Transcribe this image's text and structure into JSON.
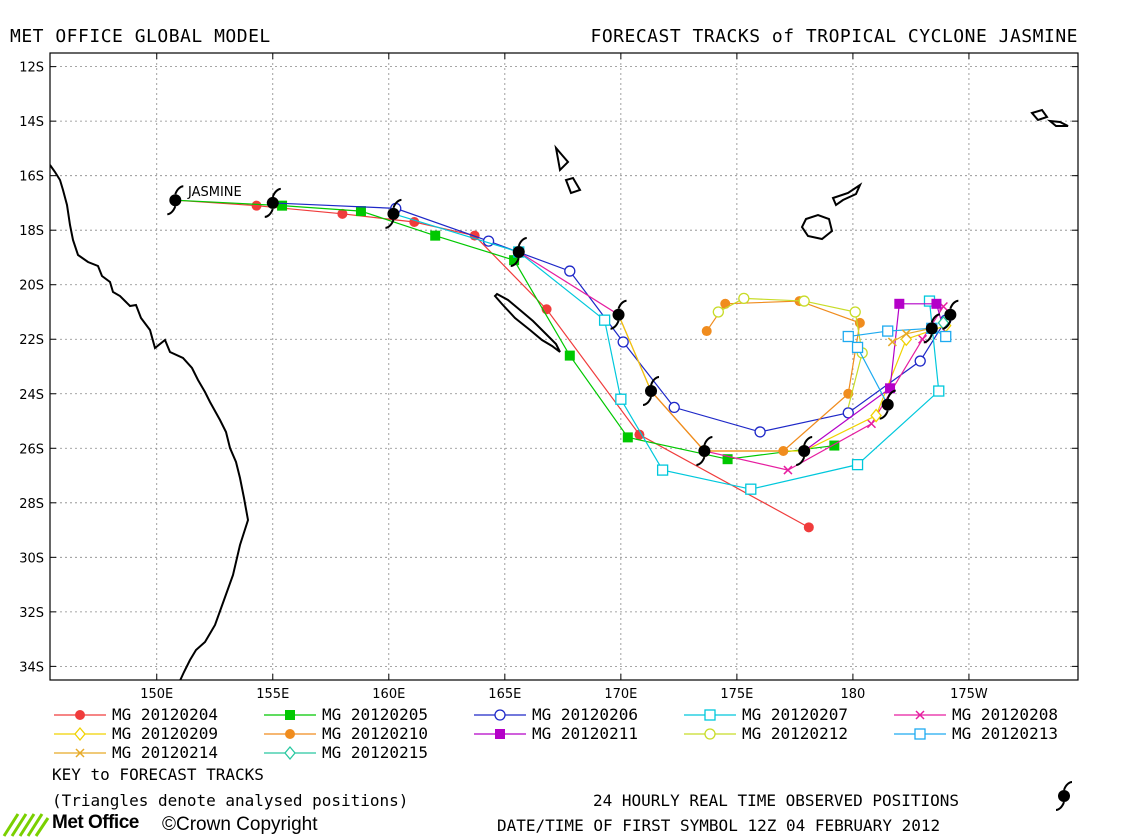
{
  "header": {
    "left": "MET OFFICE GLOBAL MODEL",
    "right": "FORECAST TRACKS of TROPICAL CYCLONE JASMINE"
  },
  "storm_label": "JASMINE",
  "axes": {
    "lat_ticks": [
      "12S",
      "14S",
      "16S",
      "18S",
      "20S",
      "22S",
      "24S",
      "26S",
      "28S",
      "30S",
      "32S",
      "34S"
    ],
    "lon_ticks": [
      "150E",
      "155E",
      "160E",
      "165E",
      "170E",
      "175E",
      "180",
      "175W"
    ],
    "lat_range": [
      -34.5,
      -11.5
    ],
    "lon_range": [
      145.4,
      189.7
    ]
  },
  "observed_positions": [
    [
      150.8,
      -16.9
    ],
    [
      155.0,
      -17.0
    ],
    [
      160.2,
      -17.4
    ],
    [
      165.6,
      -18.8
    ],
    [
      169.9,
      -21.1
    ],
    [
      171.3,
      -23.9
    ],
    [
      173.6,
      -26.1
    ],
    [
      177.9,
      -26.1
    ],
    [
      181.5,
      -24.4
    ],
    [
      183.4,
      -21.6
    ],
    [
      184.2,
      -21.1
    ]
  ],
  "tracks": [
    {
      "name": "MG 20120204",
      "color": "#f03c3c",
      "marker": "dot",
      "points": [
        [
          150.8,
          -16.9
        ],
        [
          154.3,
          -17.1
        ],
        [
          158.0,
          -17.4
        ],
        [
          161.1,
          -17.7
        ],
        [
          163.7,
          -18.2
        ],
        [
          166.8,
          -20.9
        ],
        [
          170.8,
          -25.5
        ],
        [
          178.1,
          -28.9
        ]
      ]
    },
    {
      "name": "MG 20120205",
      "color": "#00c800",
      "marker": "square",
      "points": [
        [
          150.8,
          -16.9
        ],
        [
          155.4,
          -17.1
        ],
        [
          158.8,
          -17.3
        ],
        [
          162.0,
          -18.2
        ],
        [
          165.4,
          -19.1
        ],
        [
          167.8,
          -22.6
        ],
        [
          170.3,
          -25.6
        ],
        [
          174.6,
          -26.4
        ],
        [
          179.2,
          -25.9
        ]
      ]
    },
    {
      "name": "MG 20120206",
      "color": "#1e28c8",
      "marker": "circle",
      "points": [
        [
          155.0,
          -17.0
        ],
        [
          160.3,
          -17.2
        ],
        [
          164.3,
          -18.4
        ],
        [
          167.8,
          -19.5
        ],
        [
          170.1,
          -22.1
        ],
        [
          172.3,
          -24.5
        ],
        [
          176.0,
          -25.4
        ],
        [
          179.8,
          -24.7
        ],
        [
          182.9,
          -22.8
        ],
        [
          184.0,
          -21.3
        ]
      ]
    },
    {
      "name": "MG 20120207",
      "color": "#00c8dc",
      "marker": "hsquare",
      "points": [
        [
          160.2,
          -17.4
        ],
        [
          165.6,
          -18.8
        ],
        [
          169.3,
          -21.3
        ],
        [
          170.0,
          -24.2
        ],
        [
          171.8,
          -26.8
        ],
        [
          175.6,
          -27.5
        ],
        [
          180.2,
          -26.6
        ],
        [
          183.7,
          -23.9
        ],
        [
          183.3,
          -20.6
        ]
      ]
    },
    {
      "name": "MG 20120208",
      "color": "#e61ea0",
      "marker": "x",
      "points": [
        [
          165.6,
          -18.8
        ],
        [
          169.9,
          -21.1
        ],
        [
          171.3,
          -23.9
        ],
        [
          173.6,
          -26.1
        ],
        [
          177.2,
          -26.8
        ],
        [
          180.8,
          -25.1
        ],
        [
          183.0,
          -22.0
        ],
        [
          183.9,
          -20.8
        ]
      ]
    },
    {
      "name": "MG 20120209",
      "color": "#f0d200",
      "marker": "diamond",
      "points": [
        [
          169.9,
          -21.1
        ],
        [
          171.3,
          -23.9
        ],
        [
          173.6,
          -26.1
        ],
        [
          177.9,
          -26.1
        ],
        [
          181.0,
          -24.8
        ],
        [
          182.3,
          -22.0
        ],
        [
          184.0,
          -21.5
        ]
      ]
    },
    {
      "name": "MG 20120210",
      "color": "#f08c1e",
      "marker": "dot",
      "points": [
        [
          171.3,
          -23.9
        ],
        [
          173.6,
          -26.1
        ],
        [
          177.0,
          -26.1
        ],
        [
          179.8,
          -24.0
        ],
        [
          180.3,
          -21.4
        ],
        [
          177.7,
          -20.6
        ],
        [
          174.5,
          -20.7
        ],
        [
          173.7,
          -21.7
        ]
      ]
    },
    {
      "name": "MG 20120211",
      "color": "#b400c8",
      "marker": "square",
      "points": [
        [
          177.9,
          -26.1
        ],
        [
          181.6,
          -23.8
        ],
        [
          182.0,
          -20.7
        ],
        [
          183.6,
          -20.7
        ],
        [
          184.0,
          -21.9
        ]
      ]
    },
    {
      "name": "MG 20120212",
      "color": "#c8dc28",
      "marker": "circle",
      "points": [
        [
          179.8,
          -24.5
        ],
        [
          180.4,
          -22.5
        ],
        [
          180.1,
          -21.0
        ],
        [
          177.9,
          -20.6
        ],
        [
          175.3,
          -20.5
        ],
        [
          174.2,
          -21.0
        ]
      ]
    },
    {
      "name": "MG 20120213",
      "color": "#1eaaf0",
      "marker": "hsquare",
      "points": [
        [
          181.5,
          -24.4
        ],
        [
          180.2,
          -22.3
        ],
        [
          179.8,
          -21.9
        ],
        [
          181.5,
          -21.7
        ],
        [
          183.4,
          -21.6
        ],
        [
          184.0,
          -21.9
        ]
      ]
    },
    {
      "name": "MG 20120214",
      "color": "#e6aa28",
      "marker": "x",
      "points": [
        [
          183.4,
          -21.6
        ],
        [
          182.3,
          -21.8
        ],
        [
          181.7,
          -22.1
        ]
      ]
    },
    {
      "name": "MG 20120215",
      "color": "#28c8a0",
      "marker": "diamond",
      "points": [
        [
          184.2,
          -21.1
        ],
        [
          183.9,
          -21.4
        ]
      ]
    }
  ],
  "key_title": "KEY to FORECAST TRACKS",
  "key_note": "(Triangles denote analysed positions)",
  "observed_label": "24 HOURLY REAL TIME OBSERVED POSITIONS",
  "first_symbol": "DATE/TIME OF FIRST SYMBOL 12Z 04 FEBRUARY 2012",
  "logo_text": "Met Office",
  "copyright": "©Crown Copyright"
}
